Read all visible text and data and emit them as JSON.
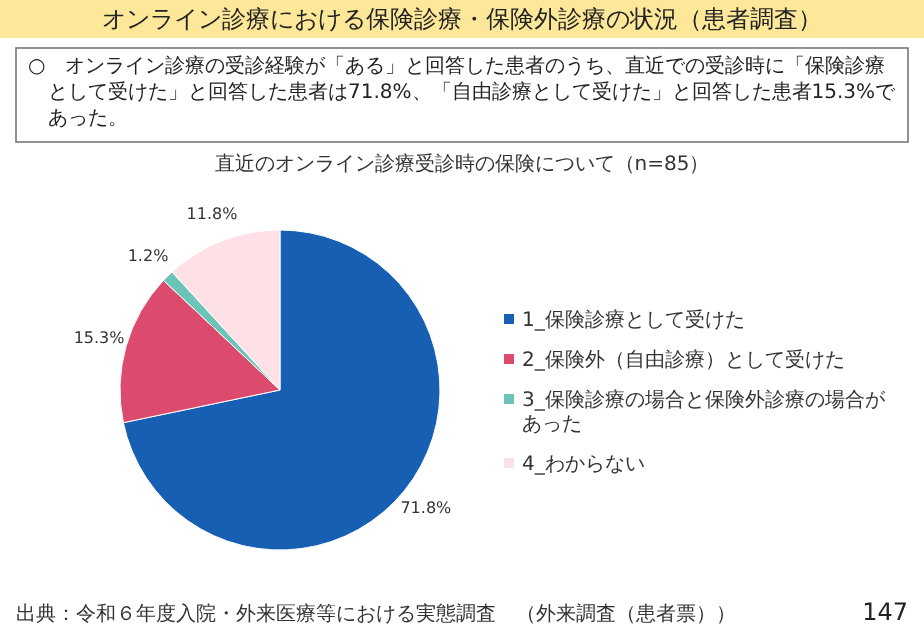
{
  "chart_data": {
    "type": "pie",
    "title": "オンライン診療における保険診療・保険外診療の状況（患者調査）",
    "subtitle": "○　オンライン診療の受診経験が「ある」と回答した患者のうち、直近での受診時に「保険診療として受けた」と回答した患者は71.8%、「自由診療として受けた」と回答した患者15.3%であった。",
    "categories": [
      "1_保険診療として受けた",
      "2_保険外（自由診療）として受けた",
      "3_保険診療の場合と保険外診療の場合があった",
      "4_わからない"
    ],
    "values": [
      71.8,
      15.3,
      1.2,
      11.8
    ],
    "value_labels": [
      "71.8%",
      "15.3%",
      "1.2%",
      "11.8%"
    ],
    "colors": [
      "#175fb2",
      "#dc4a6e",
      "#6cc3b7",
      "#fde1e7"
    ],
    "legend": "right",
    "annotations": [
      "直近のオンライン診療受診時の保険について（n=85）",
      "出典：令和６年度入院・外来医療等における実態調査　（外来調査（患者票））",
      "147"
    ]
  }
}
